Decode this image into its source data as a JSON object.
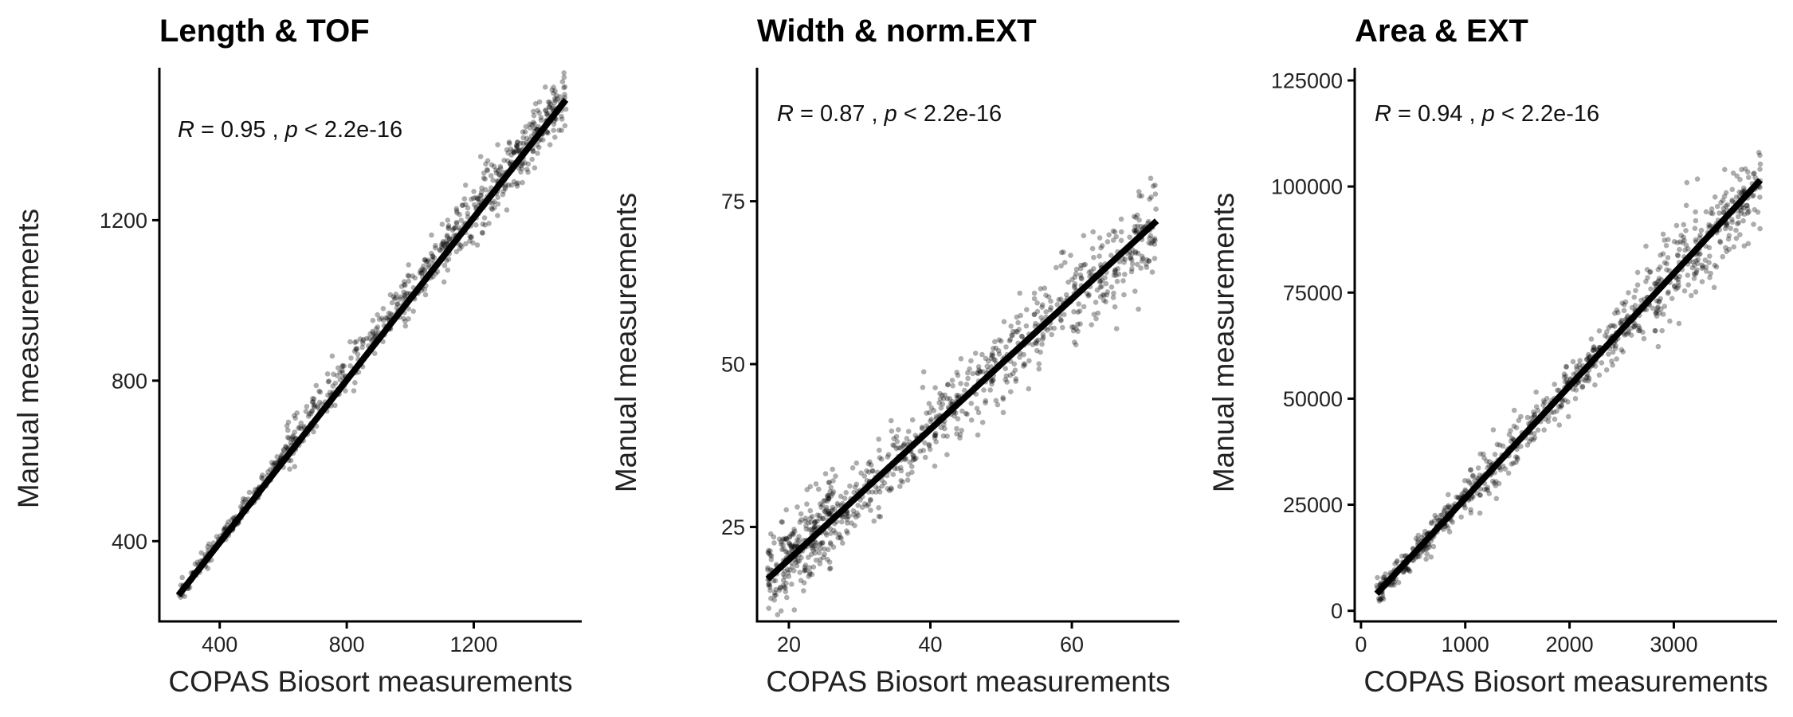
{
  "chart_data": [
    {
      "type": "scatter",
      "title": "Length & TOF",
      "xlabel": "COPAS Biosort measurements",
      "ylabel": "Manual measurements",
      "annotation": {
        "r_label": "R",
        "r_text": " = 0.95 , ",
        "p_label": "p",
        "p_text": " < 2.2e-16"
      },
      "xlim": [
        210,
        1540
      ],
      "ylim": [
        200,
        1580
      ],
      "xticks": [
        400,
        800,
        1200
      ],
      "xtick_labels": [
        "400",
        "800",
        "1200"
      ],
      "yticks": [
        400,
        800,
        1200
      ],
      "ytick_labels": [
        "400",
        "800",
        "1200"
      ],
      "regression": {
        "x": [
          270,
          1490
        ],
        "y": [
          265,
          1500
        ]
      },
      "point_sets": [
        {
          "n": 190,
          "x": [
            270,
            600
          ],
          "slope": 1.03,
          "intercept": -10,
          "noise": 12
        },
        {
          "n": 280,
          "x": [
            600,
            1100
          ],
          "slope": 1.0,
          "intercept": 20,
          "noise": 28
        },
        {
          "n": 330,
          "x": [
            1100,
            1490
          ],
          "slope": 1.0,
          "intercept": 20,
          "noise": 40
        }
      ]
    },
    {
      "type": "scatter",
      "title": "Width & norm.EXT",
      "xlabel": "COPAS Biosort measurements",
      "ylabel": "Manual measurements",
      "annotation": {
        "r_label": "R",
        "r_text": " = 0.87 , ",
        "p_label": "p",
        "p_text": " < 2.2e-16"
      },
      "xlim": [
        15.5,
        75.2
      ],
      "ylim": [
        10.5,
        95.5
      ],
      "xticks": [
        20,
        40,
        60
      ],
      "xtick_labels": [
        "20",
        "40",
        "60"
      ],
      "yticks": [
        25,
        50,
        75
      ],
      "ytick_labels": [
        "25",
        "50",
        "75"
      ],
      "regression": {
        "x": [
          17,
          72
        ],
        "y": [
          17,
          72
        ]
      },
      "point_sets": [
        {
          "n": 260,
          "x": [
            17,
            26
          ],
          "slope": 1.0,
          "intercept": 0,
          "noise": 3.2
        },
        {
          "n": 330,
          "x": [
            26,
            50
          ],
          "slope": 1.0,
          "intercept": 0,
          "noise": 2.8
        },
        {
          "n": 310,
          "x": [
            50,
            72
          ],
          "slope": 1.0,
          "intercept": 0,
          "noise": 3.5
        }
      ]
    },
    {
      "type": "scatter",
      "title": "Area & EXT",
      "xlabel": "COPAS Biosort measurements",
      "ylabel": "Manual measurements",
      "annotation": {
        "r_label": "R",
        "r_text": " = 0.94 , ",
        "p_label": "p",
        "p_text": " < 2.2e-16"
      },
      "xlim": [
        -60,
        3990
      ],
      "ylim": [
        -2500,
        128000
      ],
      "xticks": [
        0,
        1000,
        2000,
        3000
      ],
      "xtick_labels": [
        "0",
        "1000",
        "2000",
        "3000"
      ],
      "yticks": [
        0,
        25000,
        50000,
        75000,
        100000,
        125000
      ],
      "ytick_labels": [
        "0",
        "25000",
        "50000",
        "75000",
        "100000",
        "125000"
      ],
      "regression": {
        "x": [
          150,
          3830
        ],
        "y": [
          4000,
          101500
        ]
      },
      "point_sets": [
        {
          "n": 240,
          "x": [
            150,
            1000
          ],
          "slope": 26.5,
          "intercept": 0,
          "noise": 1600
        },
        {
          "n": 320,
          "x": [
            1000,
            2700
          ],
          "slope": 26.5,
          "intercept": 0,
          "noise": 3000
        },
        {
          "n": 280,
          "x": [
            2700,
            3830
          ],
          "slope": 26.5,
          "intercept": 0,
          "noise": 5200
        }
      ]
    }
  ]
}
